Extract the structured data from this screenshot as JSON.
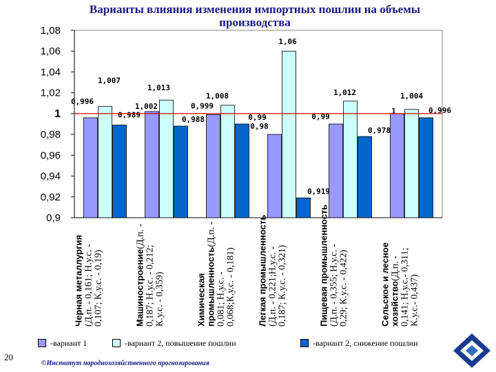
{
  "page": {
    "title": "Варианты влияния изменения импортных пошлин на объемы производства",
    "page_number": "20",
    "footer": "©Институт народнохозяйственного прогнозирования"
  },
  "legend": {
    "items": [
      {
        "label": "-вариант 1",
        "color": "#9999ff"
      },
      {
        "label": "-вариант 2, повышение пошлин",
        "color": "#ccffff"
      },
      {
        "label": "-вариант 2, снижение пошлин",
        "color": "#0066cc"
      }
    ]
  },
  "colors": {
    "variant1": "#9999ff",
    "variant2_up": "#ccffff",
    "variant2_down": "#0066cc",
    "plot_background": "#ffffff",
    "baseline": "#cc0000",
    "title": "#1a1a80"
  },
  "chart_data": {
    "type": "bar",
    "title": "Варианты влияния изменения импортных пошлин на объемы производства",
    "ylim": [
      0.9,
      1.08
    ],
    "y_ticks": [
      "0,9",
      "0,92",
      "0,94",
      "0,96",
      "0,98",
      "1",
      "1,02",
      "1,04",
      "1,06",
      "1,08"
    ],
    "grid": false,
    "reference_line": 1,
    "legend_position": "bottom",
    "categories": [
      {
        "bold": "Черная металлургия",
        "rest": " (Д.п. - 0,161; Н.у.с. - 0,107; К.у.с. - 0,19)"
      },
      {
        "bold": "Машиностроение",
        "rest": " (Д.п. - 0,187; Н.у.с. - 0,212; К.у.с. - 0,359)"
      },
      {
        "bold": "Химическая промышленность",
        "rest": " (Д.п. - 0,081; Н.у.с. - 0,068;К.у.с. - 0,181)"
      },
      {
        "bold": "Легкая промышленность",
        "rest": " (Д.п. - 0,221;Н.у.с. - 0,187; К.у.с. - 0,321)"
      },
      {
        "bold": "Пищевая промышленность",
        "rest": " (Д.п. - 0,355; Н.у.с. - 0,29; К.у.с. - 0,422)"
      },
      {
        "bold": "Сельское и лесное хозяйство",
        "rest": " (Д.п. - 0,141; Н.у.с.- 0,311; К.у.с.- 0,437)"
      }
    ],
    "series": [
      {
        "name": "-вариант 1",
        "values": [
          0.996,
          1.002,
          0.999,
          0.98,
          0.99,
          1
        ],
        "labels": [
          "0,996",
          "1,002",
          "0,999",
          "0,98",
          "0,99",
          "1"
        ]
      },
      {
        "name": "-вариант 2, повышение пошлин",
        "values": [
          1.007,
          1.013,
          1.008,
          1.06,
          1.012,
          1.004
        ],
        "labels": [
          "1,007",
          "1,013",
          "1,008",
          "1,06",
          "1,012",
          "1,004"
        ]
      },
      {
        "name": "-вариант 2, снижение пошлин",
        "values": [
          0.989,
          0.988,
          0.99,
          0.919,
          0.978,
          0.996
        ],
        "labels": [
          "0,989",
          "0,988",
          "0,99",
          "0,919",
          "0,978",
          "0,996"
        ]
      }
    ]
  }
}
